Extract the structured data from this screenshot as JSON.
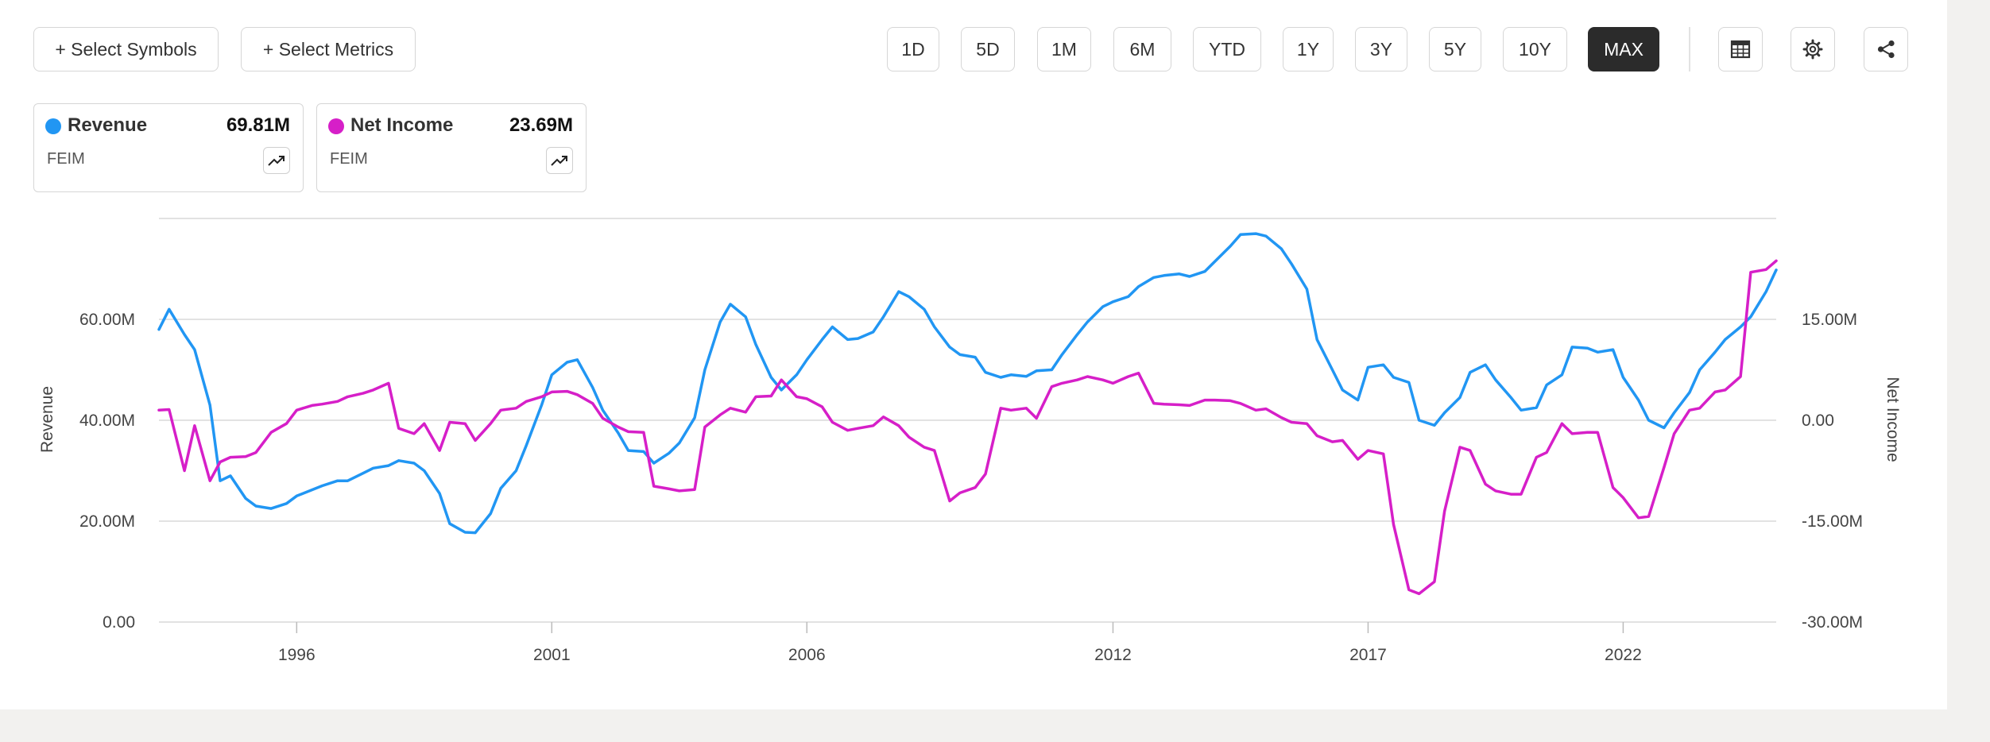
{
  "toolbar": {
    "select_symbols": "+ Select Symbols",
    "select_metrics": "+ Select Metrics",
    "ranges": [
      "1D",
      "5D",
      "1M",
      "6M",
      "YTD",
      "1Y",
      "3Y",
      "5Y",
      "10Y",
      "MAX"
    ],
    "active_range": "MAX",
    "icons": [
      "table-icon",
      "gear-icon",
      "share-icon"
    ]
  },
  "legend_cards": [
    {
      "name": "Revenue",
      "value": "69.81M",
      "symbol": "FEIM",
      "color": "#2196f3"
    },
    {
      "name": "Net Income",
      "value": "23.69M",
      "symbol": "FEIM",
      "color": "#d61fc8"
    }
  ],
  "chart_data": {
    "type": "line",
    "ylabel_left": "Revenue",
    "ylabel_right": "Net Income",
    "x_ticks": [
      "1996",
      "2001",
      "2006",
      "2012",
      "2017",
      "2022"
    ],
    "x_range": [
      1993.4,
      2023.6
    ],
    "left_axis": {
      "ticks": [
        "0.00",
        "20.00M",
        "40.00M",
        "60.00M"
      ],
      "range": [
        0,
        80
      ]
    },
    "right_axis": {
      "ticks": [
        "-30.00M",
        "-15.00M",
        "0.00",
        "15.00M"
      ],
      "range": [
        -30,
        30
      ]
    },
    "grid": true,
    "series": [
      {
        "name": "Revenue",
        "axis": "left",
        "color": "#2196f3",
        "points": [
          [
            1993.4,
            58
          ],
          [
            1993.6,
            62
          ],
          [
            1993.9,
            57
          ],
          [
            1994.1,
            54
          ],
          [
            1994.4,
            43
          ],
          [
            1994.6,
            28
          ],
          [
            1994.8,
            29
          ],
          [
            1995.1,
            24.5
          ],
          [
            1995.3,
            23
          ],
          [
            1995.6,
            22.5
          ],
          [
            1995.9,
            23.5
          ],
          [
            1996.1,
            25
          ],
          [
            1996.6,
            27
          ],
          [
            1996.9,
            28
          ],
          [
            1997.1,
            28
          ],
          [
            1997.4,
            29.5
          ],
          [
            1997.6,
            30.5
          ],
          [
            1997.9,
            31
          ],
          [
            1998.1,
            32
          ],
          [
            1998.4,
            31.5
          ],
          [
            1998.6,
            30
          ],
          [
            1998.9,
            25.5
          ],
          [
            1999.1,
            19.5
          ],
          [
            1999.4,
            17.8
          ],
          [
            1999.6,
            17.7
          ],
          [
            1999.9,
            21.5
          ],
          [
            2000.1,
            26.5
          ],
          [
            2000.4,
            30
          ],
          [
            2000.6,
            35
          ],
          [
            2000.9,
            43
          ],
          [
            2001.1,
            49
          ],
          [
            2001.4,
            51.5
          ],
          [
            2001.6,
            52
          ],
          [
            2001.9,
            46.5
          ],
          [
            2002.1,
            42
          ],
          [
            2002.4,
            37.5
          ],
          [
            2002.6,
            34
          ],
          [
            2002.9,
            33.8
          ],
          [
            2003.1,
            31.5
          ],
          [
            2003.4,
            33.5
          ],
          [
            2003.6,
            35.5
          ],
          [
            2003.9,
            40.5
          ],
          [
            2004.1,
            50
          ],
          [
            2004.4,
            59.5
          ],
          [
            2004.6,
            63
          ],
          [
            2004.9,
            60.5
          ],
          [
            2005.1,
            55
          ],
          [
            2005.4,
            48.5
          ],
          [
            2005.6,
            46
          ],
          [
            2005.9,
            49
          ],
          [
            2006.1,
            52
          ],
          [
            2006.4,
            56
          ],
          [
            2006.6,
            58.5
          ],
          [
            2006.9,
            56
          ],
          [
            2007.1,
            56.2
          ],
          [
            2007.4,
            57.5
          ],
          [
            2007.6,
            60.5
          ],
          [
            2007.9,
            65.5
          ],
          [
            2008.1,
            64.5
          ],
          [
            2008.4,
            62
          ],
          [
            2008.6,
            58.5
          ],
          [
            2008.9,
            54.5
          ],
          [
            2009.1,
            53
          ],
          [
            2009.4,
            52.5
          ],
          [
            2009.6,
            49.5
          ],
          [
            2009.9,
            48.5
          ],
          [
            2010.1,
            49
          ],
          [
            2010.4,
            48.7
          ],
          [
            2010.6,
            49.8
          ],
          [
            2010.9,
            50
          ],
          [
            2011.1,
            53
          ],
          [
            2011.4,
            57
          ],
          [
            2011.6,
            59.5
          ],
          [
            2011.9,
            62.5
          ],
          [
            2012.1,
            63.5
          ],
          [
            2012.4,
            64.5
          ],
          [
            2012.6,
            66.5
          ],
          [
            2012.9,
            68.3
          ],
          [
            2013.1,
            68.7
          ],
          [
            2013.4,
            69
          ],
          [
            2013.6,
            68.5
          ],
          [
            2013.9,
            69.5
          ],
          [
            2014.1,
            71.5
          ],
          [
            2014.4,
            74.5
          ],
          [
            2014.6,
            76.8
          ],
          [
            2014.9,
            77
          ],
          [
            2015.1,
            76.5
          ],
          [
            2015.4,
            74
          ],
          [
            2015.6,
            71
          ],
          [
            2015.9,
            66
          ],
          [
            2016.1,
            56
          ],
          [
            2016.4,
            50
          ],
          [
            2016.6,
            46
          ],
          [
            2016.9,
            44
          ],
          [
            2017.1,
            50.5
          ],
          [
            2017.4,
            51
          ],
          [
            2017.6,
            48.5
          ],
          [
            2017.9,
            47.5
          ],
          [
            2018.1,
            40
          ],
          [
            2018.4,
            39
          ],
          [
            2018.6,
            41.5
          ],
          [
            2018.9,
            44.5
          ],
          [
            2019.1,
            49.5
          ],
          [
            2019.4,
            51
          ],
          [
            2019.6,
            48
          ],
          [
            2019.9,
            44.5
          ],
          [
            2020.1,
            42
          ],
          [
            2020.4,
            42.5
          ],
          [
            2020.6,
            47
          ],
          [
            2020.9,
            49
          ],
          [
            2021.1,
            54.5
          ],
          [
            2021.4,
            54.3
          ],
          [
            2021.6,
            53.5
          ],
          [
            2021.9,
            54
          ],
          [
            2022.1,
            48.5
          ],
          [
            2022.4,
            44
          ],
          [
            2022.6,
            40
          ],
          [
            2022.9,
            38.5
          ],
          [
            2023.1,
            41.5
          ],
          [
            2023.4,
            45.5
          ],
          [
            2023.6,
            50
          ],
          [
            2023.9,
            53.5
          ],
          [
            2024.1,
            56
          ],
          [
            2024.4,
            58.5
          ],
          [
            2024.6,
            60.5
          ],
          [
            2024.9,
            65.5
          ],
          [
            2025.1,
            69.8
          ]
        ]
      },
      {
        "name": "Net Income",
        "axis": "right",
        "color": "#d61fc8",
        "points": [
          [
            1993.4,
            1.5
          ],
          [
            1993.6,
            1.6
          ],
          [
            1993.9,
            -7.5
          ],
          [
            1994.1,
            -0.8
          ],
          [
            1994.4,
            -9
          ],
          [
            1994.6,
            -6.2
          ],
          [
            1994.8,
            -5.5
          ],
          [
            1995.1,
            -5.4
          ],
          [
            1995.3,
            -4.8
          ],
          [
            1995.6,
            -1.8
          ],
          [
            1995.9,
            -0.5
          ],
          [
            1996.1,
            1.5
          ],
          [
            1996.4,
            2.2
          ],
          [
            1996.6,
            2.4
          ],
          [
            1996.9,
            2.8
          ],
          [
            1997.1,
            3.5
          ],
          [
            1997.4,
            4
          ],
          [
            1997.6,
            4.5
          ],
          [
            1997.9,
            5.5
          ],
          [
            1998.1,
            -1.2
          ],
          [
            1998.4,
            -2
          ],
          [
            1998.6,
            -0.5
          ],
          [
            1998.9,
            -4.5
          ],
          [
            1999.1,
            -0.3
          ],
          [
            1999.4,
            -0.5
          ],
          [
            1999.6,
            -3
          ],
          [
            1999.9,
            -0.5
          ],
          [
            2000.1,
            1.5
          ],
          [
            2000.4,
            1.8
          ],
          [
            2000.6,
            2.8
          ],
          [
            2000.9,
            3.5
          ],
          [
            2001.1,
            4.2
          ],
          [
            2001.4,
            4.3
          ],
          [
            2001.6,
            3.8
          ],
          [
            2001.9,
            2.5
          ],
          [
            2002.1,
            0.3
          ],
          [
            2002.4,
            -1
          ],
          [
            2002.6,
            -1.7
          ],
          [
            2002.9,
            -1.8
          ],
          [
            2003.1,
            -9.8
          ],
          [
            2003.4,
            -10.2
          ],
          [
            2003.6,
            -10.5
          ],
          [
            2003.9,
            -10.3
          ],
          [
            2004.1,
            -1
          ],
          [
            2004.4,
            0.8
          ],
          [
            2004.6,
            1.8
          ],
          [
            2004.9,
            1.2
          ],
          [
            2005.1,
            3.5
          ],
          [
            2005.4,
            3.6
          ],
          [
            2005.6,
            6
          ],
          [
            2005.9,
            3.5
          ],
          [
            2006.1,
            3.2
          ],
          [
            2006.4,
            2
          ],
          [
            2006.6,
            -0.3
          ],
          [
            2006.9,
            -1.5
          ],
          [
            2007.1,
            -1.2
          ],
          [
            2007.4,
            -0.8
          ],
          [
            2007.6,
            0.5
          ],
          [
            2007.9,
            -0.8
          ],
          [
            2008.1,
            -2.5
          ],
          [
            2008.4,
            -4
          ],
          [
            2008.6,
            -4.5
          ],
          [
            2008.9,
            -12
          ],
          [
            2009.1,
            -10.8
          ],
          [
            2009.4,
            -10
          ],
          [
            2009.6,
            -8
          ],
          [
            2009.9,
            1.8
          ],
          [
            2010.1,
            1.5
          ],
          [
            2010.4,
            1.8
          ],
          [
            2010.6,
            0.3
          ],
          [
            2010.9,
            5
          ],
          [
            2011.1,
            5.5
          ],
          [
            2011.4,
            6
          ],
          [
            2011.6,
            6.5
          ],
          [
            2011.9,
            6
          ],
          [
            2012.1,
            5.5
          ],
          [
            2012.4,
            6.5
          ],
          [
            2012.6,
            7
          ],
          [
            2012.9,
            2.5
          ],
          [
            2013.1,
            2.4
          ],
          [
            2013.4,
            2.3
          ],
          [
            2013.6,
            2.2
          ],
          [
            2013.9,
            3
          ],
          [
            2014.1,
            3
          ],
          [
            2014.4,
            2.9
          ],
          [
            2014.6,
            2.5
          ],
          [
            2014.9,
            1.5
          ],
          [
            2015.1,
            1.7
          ],
          [
            2015.4,
            0.4
          ],
          [
            2015.6,
            -0.3
          ],
          [
            2015.9,
            -0.5
          ],
          [
            2016.1,
            -2.3
          ],
          [
            2016.4,
            -3.2
          ],
          [
            2016.6,
            -3
          ],
          [
            2016.9,
            -5.8
          ],
          [
            2017.1,
            -4.5
          ],
          [
            2017.4,
            -5
          ],
          [
            2017.6,
            -15.5
          ],
          [
            2017.9,
            -25.2
          ],
          [
            2018.1,
            -25.8
          ],
          [
            2018.4,
            -24
          ],
          [
            2018.6,
            -13.5
          ],
          [
            2018.9,
            -4
          ],
          [
            2019.1,
            -4.5
          ],
          [
            2019.4,
            -9.5
          ],
          [
            2019.6,
            -10.5
          ],
          [
            2019.9,
            -11
          ],
          [
            2020.1,
            -11
          ],
          [
            2020.4,
            -5.5
          ],
          [
            2020.6,
            -4.8
          ],
          [
            2020.9,
            -0.5
          ],
          [
            2021.1,
            -2
          ],
          [
            2021.4,
            -1.8
          ],
          [
            2021.6,
            -1.8
          ],
          [
            2021.9,
            -10
          ],
          [
            2022.1,
            -11.5
          ],
          [
            2022.4,
            -14.5
          ],
          [
            2022.6,
            -14.3
          ],
          [
            2022.9,
            -7
          ],
          [
            2023.1,
            -2
          ],
          [
            2023.4,
            1.5
          ],
          [
            2023.6,
            1.8
          ],
          [
            2023.9,
            4.2
          ],
          [
            2024.1,
            4.5
          ],
          [
            2024.4,
            6.5
          ],
          [
            2024.6,
            22
          ],
          [
            2024.9,
            22.4
          ],
          [
            2025.1,
            23.7
          ]
        ]
      }
    ]
  }
}
